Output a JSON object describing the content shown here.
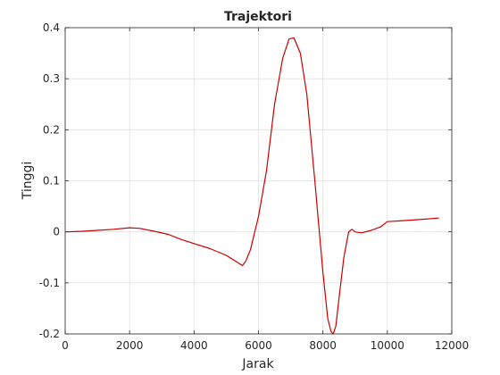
{
  "chart_data": {
    "type": "line",
    "title": "Trajektori",
    "xlabel": "Jarak",
    "ylabel": "Tinggi",
    "xlim": [
      0,
      12000
    ],
    "ylim": [
      -0.2,
      0.4
    ],
    "xticks": [
      0,
      2000,
      4000,
      6000,
      8000,
      10000,
      12000
    ],
    "yticks": [
      -0.2,
      -0.1,
      0,
      0.1,
      0.2,
      0.3,
      0.4
    ],
    "xtick_labels": [
      "0",
      "2000",
      "4000",
      "6000",
      "8000",
      "10000",
      "12000"
    ],
    "ytick_labels": [
      "-0.2",
      "-0.1",
      "0",
      "0.1",
      "0.2",
      "0.3",
      "0.4"
    ],
    "grid": true,
    "colors": {
      "line": "#cc0000",
      "grid": "#e0e0e0",
      "axes": "#262626"
    },
    "series": [
      {
        "x": [
          0,
          500,
          1000,
          1500,
          2000,
          2300,
          2700,
          3200,
          3600,
          4000,
          4500,
          5000,
          5300,
          5450,
          5500,
          5600,
          5750,
          6000,
          6250,
          6500,
          6750,
          6950,
          7100,
          7300,
          7500,
          7750,
          8000,
          8150,
          8250,
          8320,
          8400,
          8500,
          8650,
          8800,
          8900,
          9000,
          9200,
          9500,
          9800,
          10000,
          10500,
          11000,
          11600
        ],
        "y": [
          0.0,
          0.001,
          0.003,
          0.005,
          0.008,
          0.007,
          0.002,
          -0.005,
          -0.015,
          -0.023,
          -0.033,
          -0.046,
          -0.058,
          -0.064,
          -0.066,
          -0.058,
          -0.035,
          0.03,
          0.12,
          0.25,
          0.34,
          0.378,
          0.38,
          0.35,
          0.27,
          0.1,
          -0.08,
          -0.17,
          -0.195,
          -0.2,
          -0.185,
          -0.13,
          -0.05,
          0.0,
          0.005,
          0.0,
          -0.002,
          0.003,
          0.01,
          0.02,
          0.022,
          0.024,
          0.027
        ]
      }
    ]
  }
}
